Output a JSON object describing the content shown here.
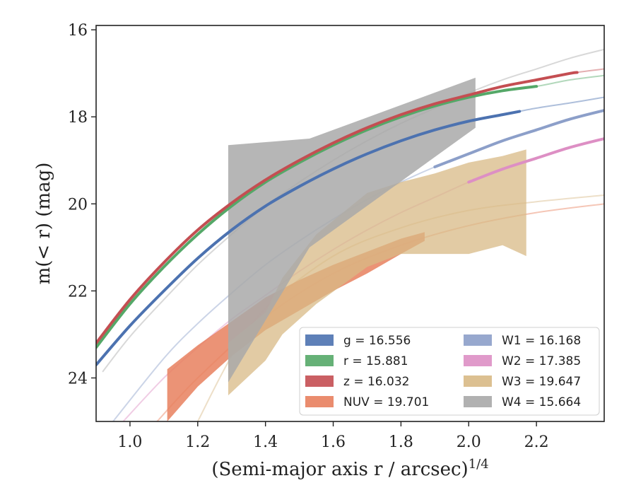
{
  "chart_data": {
    "type": "area",
    "xlabel": "(Semi-major axis r / arcsec)",
    "xlabel_exponent": "1/4",
    "ylabel": "m(< r) (mag)",
    "xlim": [
      0.9,
      2.4
    ],
    "ylim": [
      25.0,
      15.9
    ],
    "y_inverted": true,
    "xticks": [
      1.0,
      1.2,
      1.4,
      1.6,
      1.8,
      2.0,
      2.2
    ],
    "xtick_labels": [
      "1.0",
      "1.2",
      "1.4",
      "1.6",
      "1.8",
      "2.0",
      "2.2"
    ],
    "yticks": [
      16,
      18,
      20,
      22,
      24
    ],
    "ytick_labels": [
      "16",
      "18",
      "20",
      "22",
      "24"
    ],
    "grid": false,
    "legend_position": "lower-right",
    "series": [
      {
        "name": "g",
        "legend_label": "g = 16.556",
        "color": "#4c72b0",
        "model_curve": {
          "x": [
            0.9,
            1.0,
            1.1,
            1.2,
            1.3,
            1.4,
            1.5,
            1.6,
            1.7,
            1.8,
            1.9,
            2.0,
            2.1,
            2.2,
            2.3,
            2.4
          ],
          "y": [
            23.7,
            22.8,
            22.0,
            21.25,
            20.6,
            20.05,
            19.6,
            19.2,
            18.85,
            18.55,
            18.3,
            18.1,
            17.95,
            17.8,
            17.68,
            17.55
          ]
        },
        "data_x_range": [
          0.9,
          2.15
        ]
      },
      {
        "name": "r",
        "legend_label": "r = 15.881",
        "color": "#55a868",
        "model_curve": {
          "x": [
            0.9,
            1.0,
            1.1,
            1.2,
            1.3,
            1.4,
            1.5,
            1.6,
            1.7,
            1.8,
            1.9,
            2.0,
            2.1,
            2.2,
            2.3,
            2.4
          ],
          "y": [
            23.3,
            22.3,
            21.45,
            20.7,
            20.05,
            19.5,
            19.05,
            18.65,
            18.3,
            18.0,
            17.75,
            17.55,
            17.4,
            17.3,
            17.15,
            17.05
          ]
        },
        "data_x_range": [
          0.9,
          2.2
        ]
      },
      {
        "name": "z",
        "legend_label": "z = 16.032",
        "color": "#c44e52",
        "model_curve": {
          "x": [
            0.9,
            1.0,
            1.1,
            1.2,
            1.3,
            1.4,
            1.5,
            1.6,
            1.7,
            1.8,
            1.9,
            2.0,
            2.1,
            2.2,
            2.3,
            2.4
          ],
          "y": [
            23.2,
            22.2,
            21.35,
            20.6,
            19.98,
            19.45,
            19.0,
            18.6,
            18.25,
            17.95,
            17.7,
            17.5,
            17.3,
            17.15,
            17.0,
            16.9
          ]
        },
        "data_x_range": [
          0.9,
          2.32
        ]
      },
      {
        "name": "NUV",
        "legend_label": "NUV = 19.701",
        "color": "#e8805e",
        "band": {
          "x": [
            1.11,
            1.2,
            1.3,
            1.4,
            1.5,
            1.6,
            1.7,
            1.8,
            1.87
          ],
          "y_upper": [
            23.8,
            23.25,
            22.7,
            22.15,
            21.75,
            21.4,
            21.1,
            20.8,
            20.65
          ],
          "y_lower": [
            25.0,
            24.2,
            23.5,
            22.9,
            22.45,
            22.0,
            21.6,
            21.15,
            20.85
          ]
        },
        "model_curve": {
          "x": [
            1.08,
            1.2,
            1.4,
            1.6,
            1.8,
            2.0,
            2.2,
            2.4
          ],
          "y": [
            25.0,
            24.0,
            22.6,
            21.6,
            20.95,
            20.5,
            20.2,
            20.0
          ]
        }
      },
      {
        "name": "W1",
        "legend_label": "W1 = 16.168",
        "color": "#8c9fc9",
        "model_curve": {
          "x": [
            0.95,
            1.1,
            1.2,
            1.3,
            1.4,
            1.5,
            1.6,
            1.7,
            1.8,
            1.9,
            2.0,
            2.1,
            2.2,
            2.3,
            2.4
          ],
          "y": [
            25.0,
            23.55,
            22.75,
            22.05,
            21.4,
            20.85,
            20.35,
            19.9,
            19.5,
            19.15,
            18.85,
            18.55,
            18.3,
            18.05,
            17.85
          ]
        },
        "data_x_range": [
          1.9,
          2.4
        ]
      },
      {
        "name": "W2",
        "legend_label": "W2 = 17.385",
        "color": "#dd8fc4",
        "model_curve": {
          "x": [
            0.98,
            1.1,
            1.2,
            1.3,
            1.4,
            1.5,
            1.6,
            1.7,
            1.8,
            1.9,
            2.0,
            2.1,
            2.2,
            2.3,
            2.4
          ],
          "y": [
            25.0,
            24.0,
            23.3,
            22.65,
            22.1,
            21.55,
            21.05,
            20.6,
            20.2,
            19.85,
            19.5,
            19.2,
            18.95,
            18.7,
            18.5
          ]
        },
        "data_x_range": [
          2.0,
          2.4
        ]
      },
      {
        "name": "W3",
        "legend_label": "W3 = 19.647",
        "color": "#d8b985",
        "band": {
          "x": [
            1.29,
            1.4,
            1.45,
            1.55,
            1.7,
            1.8,
            1.9,
            2.0,
            2.1,
            2.17
          ],
          "y_upper": [
            23.2,
            22.5,
            21.7,
            20.7,
            19.75,
            19.5,
            19.3,
            19.05,
            18.9,
            18.75
          ],
          "y_lower": [
            24.4,
            23.6,
            23.0,
            22.3,
            21.45,
            21.15,
            21.15,
            21.15,
            20.95,
            21.2
          ]
        },
        "model_curve": {
          "x": [
            1.2,
            1.3,
            1.4,
            1.6,
            1.8,
            2.0,
            2.2,
            2.4
          ],
          "y": [
            25.0,
            23.5,
            22.4,
            21.2,
            20.55,
            20.15,
            19.95,
            19.8
          ]
        }
      },
      {
        "name": "W4",
        "legend_label": "W4 = 15.664",
        "color": "#a9a9a9",
        "band": {
          "x": [
            1.29,
            1.53,
            2.02
          ],
          "y_upper": [
            18.65,
            18.5,
            17.1
          ],
          "y_lower": [
            24.1,
            21.0,
            18.25
          ]
        },
        "model_curve": {
          "x": [
            0.92,
            1.0,
            1.1,
            1.2,
            1.3,
            1.4,
            1.5,
            1.6,
            1.7,
            1.8,
            1.9,
            2.0,
            2.1,
            2.2,
            2.3,
            2.4
          ],
          "y": [
            23.85,
            23.05,
            22.2,
            21.4,
            20.7,
            20.05,
            19.5,
            19.0,
            18.55,
            18.15,
            17.8,
            17.45,
            17.15,
            16.9,
            16.65,
            16.45
          ]
        }
      }
    ]
  }
}
